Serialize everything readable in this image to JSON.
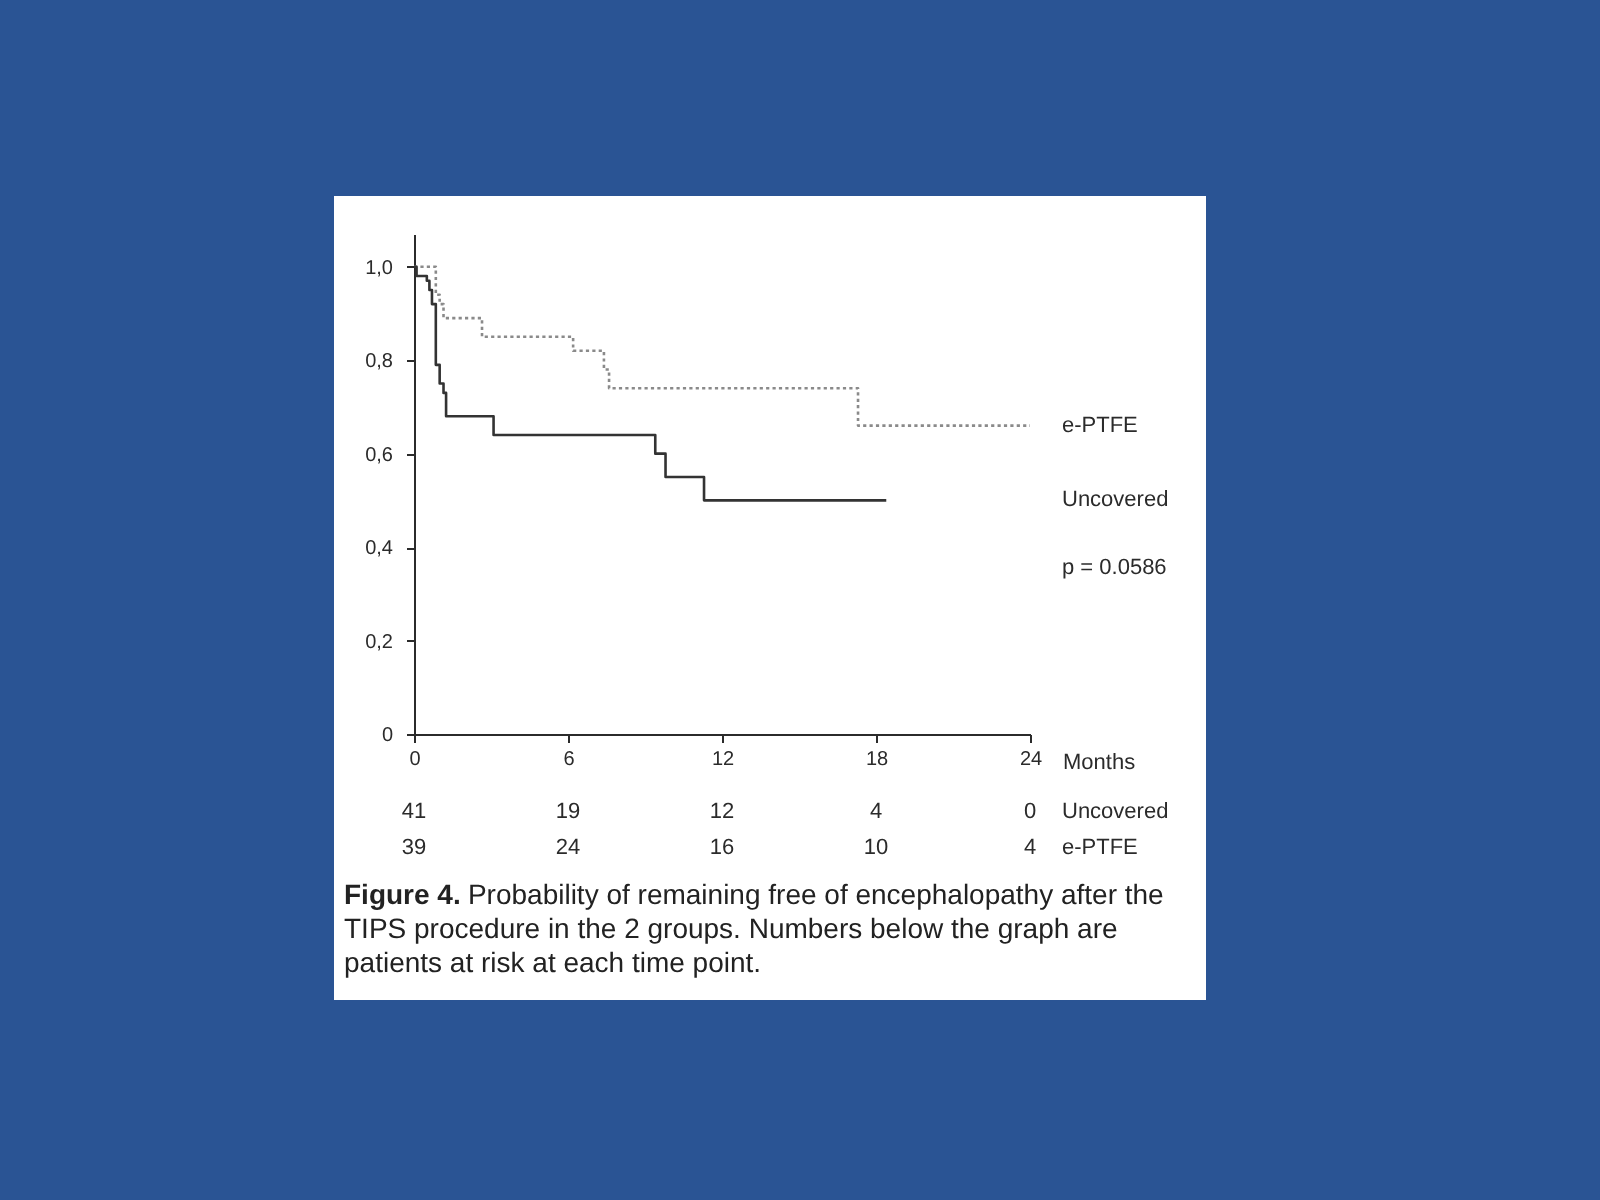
{
  "chart_data": {
    "type": "step",
    "xlabel": "Months",
    "xlim": [
      0,
      24
    ],
    "xticks": [
      0,
      6,
      12,
      18,
      24
    ],
    "ylim": [
      0,
      1.07
    ],
    "yticks": [
      0,
      {
        "value": 0.2,
        "label": "0,2"
      },
      {
        "value": 0.4,
        "label": "0,4"
      },
      {
        "value": 0.6,
        "label": "0,6"
      },
      {
        "value": 0.8,
        "label": "0,8"
      },
      {
        "value": 1.0,
        "label": "1,0"
      }
    ],
    "series": [
      {
        "name": "e-PTFE",
        "color": "#8a8a8a",
        "line_style": "dotted",
        "x": [
          0,
          0.85,
          1.0,
          1.15,
          2.65,
          6.2,
          7.4,
          7.6,
          17.3,
          24
        ],
        "values": [
          1.0,
          0.94,
          0.92,
          0.89,
          0.85,
          0.82,
          0.78,
          0.74,
          0.66,
          0.66
        ]
      },
      {
        "name": "Uncovered",
        "color": "#333333",
        "line_style": "solid",
        "x": [
          0,
          0.1,
          0.5,
          0.6,
          0.7,
          0.85,
          1.0,
          1.15,
          1.25,
          3.1,
          9.4,
          9.8,
          11.3,
          18.4
        ],
        "values": [
          1.0,
          0.98,
          0.97,
          0.95,
          0.92,
          0.79,
          0.75,
          0.73,
          0.68,
          0.64,
          0.6,
          0.55,
          0.5,
          0.5
        ]
      }
    ],
    "annotations": [
      "41",
      "19",
      "12",
      "4",
      "0",
      "Uncovered",
      "39",
      "24",
      "16",
      "10",
      "4",
      "e-PTFE",
      "p = 0.0586",
      "Figure 4. Probability of remaining free of encephalopathy after the TIPS procedure in the 2 groups. Numbers below the graph are patients at risk at each time point."
    ]
  }
}
